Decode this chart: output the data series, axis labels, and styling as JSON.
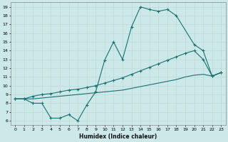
{
  "xlabel": "Humidex (Indice chaleur)",
  "bg_color": "#cce8e8",
  "grid_color": "#aacccc",
  "line_color": "#1a7070",
  "xlim": [
    -0.5,
    23.5
  ],
  "ylim": [
    5.5,
    19.5
  ],
  "xticks": [
    0,
    1,
    2,
    3,
    4,
    5,
    6,
    7,
    8,
    9,
    10,
    11,
    12,
    13,
    14,
    15,
    16,
    17,
    18,
    19,
    20,
    21,
    22,
    23
  ],
  "yticks": [
    6,
    7,
    8,
    9,
    10,
    11,
    12,
    13,
    14,
    15,
    16,
    17,
    18,
    19
  ],
  "line1_x": [
    0,
    1,
    2,
    3,
    4,
    5,
    6,
    7,
    8,
    9,
    10,
    11,
    12,
    13,
    14,
    15,
    16,
    17,
    18,
    20,
    21,
    22,
    23
  ],
  "line1_y": [
    8.5,
    8.5,
    8.0,
    8.0,
    6.3,
    6.3,
    6.7,
    6.0,
    7.8,
    9.3,
    12.9,
    15.0,
    13.0,
    16.7,
    19.0,
    18.7,
    18.5,
    18.7,
    18.0,
    14.7,
    14.0,
    11.1,
    11.5
  ],
  "line2_x": [
    0,
    1,
    2,
    3,
    4,
    5,
    6,
    7,
    8,
    9,
    10,
    11,
    12,
    13,
    14,
    15,
    16,
    17,
    18,
    19,
    20,
    21,
    22,
    23
  ],
  "line2_y": [
    8.5,
    8.5,
    8.8,
    9.0,
    9.1,
    9.3,
    9.5,
    9.6,
    9.8,
    10.0,
    10.3,
    10.6,
    10.9,
    11.3,
    11.7,
    12.1,
    12.5,
    12.9,
    13.3,
    13.7,
    14.0,
    13.0,
    11.1,
    11.5
  ],
  "line3_x": [
    0,
    1,
    2,
    3,
    4,
    5,
    6,
    7,
    8,
    9,
    10,
    11,
    12,
    13,
    14,
    15,
    16,
    17,
    18,
    19,
    20,
    21,
    22,
    23
  ],
  "line3_y": [
    8.5,
    8.5,
    8.5,
    8.6,
    8.7,
    8.8,
    8.9,
    9.0,
    9.1,
    9.2,
    9.3,
    9.4,
    9.5,
    9.7,
    9.9,
    10.1,
    10.3,
    10.5,
    10.7,
    11.0,
    11.2,
    11.3,
    11.1,
    11.5
  ]
}
